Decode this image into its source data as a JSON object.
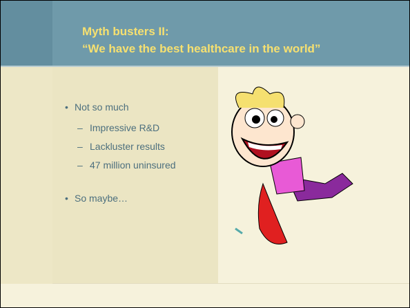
{
  "header": {
    "title_lines": [
      "Myth busters II:",
      "“We have the best healthcare in the world”"
    ]
  },
  "bullets": [
    {
      "text": "Not so much",
      "sub": [
        "Impressive R&D",
        "Lackluster results",
        "47 million uninsured"
      ]
    },
    {
      "text": "So maybe…",
      "sub": []
    }
  ]
}
